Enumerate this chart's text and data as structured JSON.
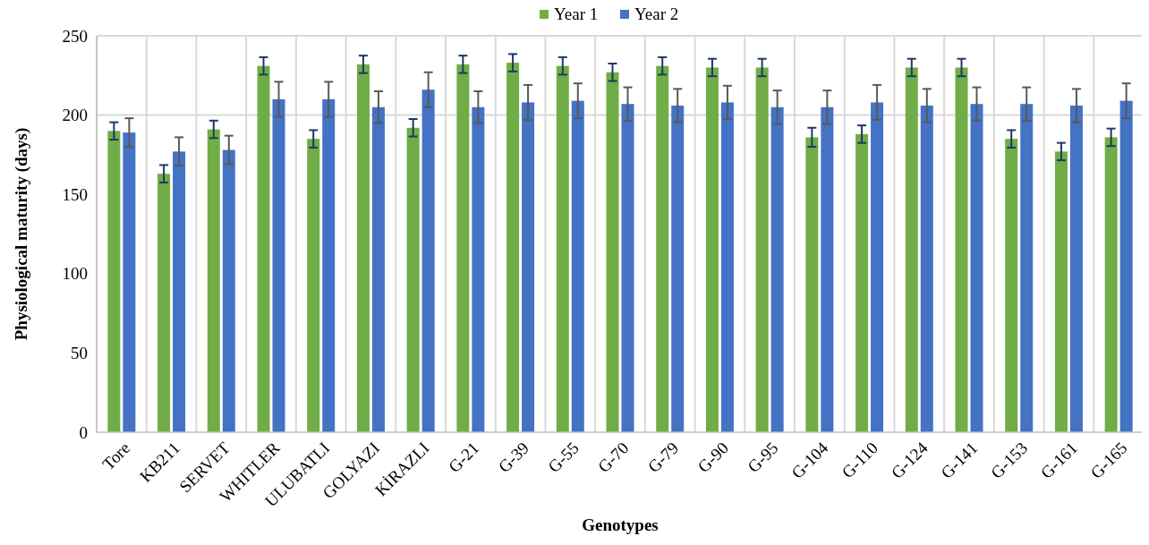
{
  "chart_data": {
    "type": "bar",
    "xlabel": "Genotypes",
    "ylabel": "Physiological maturity (days)",
    "categories": [
      "Tore",
      "KB211",
      "SERVET",
      "WHITLER",
      "ULUBATLI",
      "GOLYAZI",
      "KİRAZLI",
      "G-21",
      "G-39",
      "G-55",
      "G-70",
      "G-79",
      "G-90",
      "G-95",
      "G-104",
      "G-110",
      "G-124",
      "G-141",
      "G-153",
      "G-161",
      "G-165"
    ],
    "series": [
      {
        "name": "Year 1",
        "color": "#70ad47",
        "values": [
          190,
          163,
          191,
          231,
          185,
          232,
          192,
          232,
          233,
          231,
          227,
          231,
          230,
          230,
          186,
          188,
          230,
          230,
          185,
          177,
          186
        ],
        "errors": [
          5.5,
          5.5,
          5.5,
          5.5,
          5.5,
          5.5,
          5.5,
          5.5,
          5.5,
          5.5,
          5.5,
          5.5,
          5.5,
          5.5,
          6,
          5.5,
          5.5,
          5.5,
          5.5,
          5.5,
          5.5
        ]
      },
      {
        "name": "Year 2",
        "color": "#4472c4",
        "values": [
          189,
          177,
          178,
          210,
          210,
          205,
          216,
          205,
          208,
          209,
          207,
          206,
          208,
          205,
          205,
          208,
          206,
          207,
          207,
          206,
          209
        ],
        "errors": [
          9,
          9,
          9,
          11,
          11,
          10,
          11,
          10,
          11,
          11,
          10.5,
          10.5,
          10.5,
          10.5,
          10.5,
          11,
          10.5,
          10.5,
          10.5,
          10.5,
          11
        ]
      }
    ],
    "ylim": [
      0,
      250
    ],
    "yticks": [
      0,
      50,
      100,
      150,
      200,
      250
    ],
    "grid": "x",
    "legend": "top",
    "ref_lines": [
      {
        "axis": "y",
        "value": 200,
        "color": "#d9d9d9"
      }
    ]
  }
}
